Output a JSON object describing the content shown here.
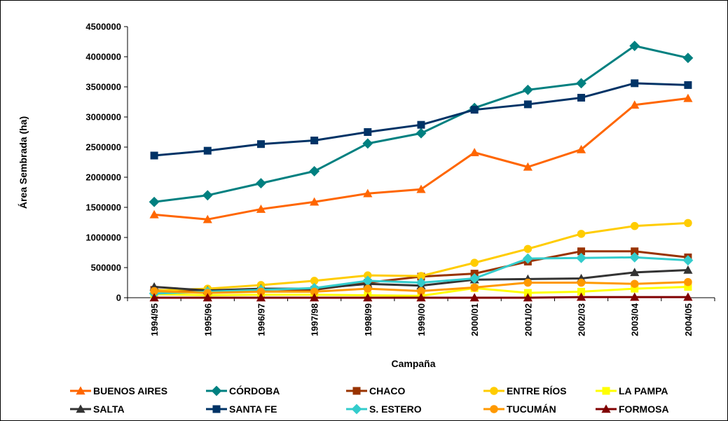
{
  "chart_data": {
    "type": "line",
    "title": "",
    "xlabel": "Campaña",
    "ylabel": "Área Sembrada (ha)",
    "ylim": [
      0,
      4500000
    ],
    "yticks": [
      "0",
      "500000",
      "1000000",
      "1500000",
      "2000000",
      "2500000",
      "3000000",
      "3500000",
      "4000000",
      "4500000"
    ],
    "grid": false,
    "legend_position": "bottom",
    "categories": [
      "1994/95",
      "1995/96",
      "1996/97",
      "1997/98",
      "1998/99",
      "1999/00",
      "2000/01",
      "2001/02",
      "2002/03",
      "2003/04",
      "2004/05"
    ],
    "series": [
      {
        "name": "BUENOS AIRES",
        "color": "#FF6600",
        "marker": "triangle",
        "values": [
          1380000,
          1300000,
          1470000,
          1590000,
          1730000,
          1800000,
          2410000,
          2170000,
          2460000,
          3200000,
          3310000
        ]
      },
      {
        "name": "CÓRDOBA",
        "color": "#008080",
        "marker": "diamond",
        "values": [
          1590000,
          1700000,
          1900000,
          2100000,
          2560000,
          2730000,
          3150000,
          3450000,
          3560000,
          4180000,
          3980000
        ]
      },
      {
        "name": "CHACO",
        "color": "#993300",
        "marker": "square",
        "values": [
          130000,
          100000,
          140000,
          130000,
          250000,
          350000,
          400000,
          600000,
          770000,
          770000,
          670000
        ]
      },
      {
        "name": "ENTRE RÍOS",
        "color": "#FFCC00",
        "marker": "circle",
        "values": [
          120000,
          150000,
          210000,
          280000,
          370000,
          360000,
          580000,
          810000,
          1060000,
          1190000,
          1240000
        ]
      },
      {
        "name": "LA PAMPA",
        "color": "#FFFF00",
        "marker": "square",
        "values": [
          60000,
          40000,
          50000,
          50000,
          40000,
          30000,
          160000,
          80000,
          100000,
          150000,
          180000
        ]
      },
      {
        "name": "SALTA",
        "color": "#333333",
        "marker": "triangle",
        "values": [
          180000,
          120000,
          150000,
          150000,
          230000,
          200000,
          300000,
          310000,
          320000,
          420000,
          460000
        ]
      },
      {
        "name": "SANTA FE",
        "color": "#003366",
        "marker": "square",
        "values": [
          2360000,
          2440000,
          2550000,
          2610000,
          2750000,
          2870000,
          3120000,
          3210000,
          3320000,
          3560000,
          3530000
        ]
      },
      {
        "name": "S. ESTERO",
        "color": "#33CCCC",
        "marker": "diamond",
        "values": [
          70000,
          100000,
          130000,
          160000,
          280000,
          250000,
          320000,
          650000,
          660000,
          670000,
          620000
        ]
      },
      {
        "name": "TUCUMÁN",
        "color": "#FF9900",
        "marker": "circle",
        "values": [
          110000,
          80000,
          100000,
          100000,
          150000,
          110000,
          170000,
          250000,
          250000,
          230000,
          260000
        ]
      },
      {
        "name": "FORMOSA",
        "color": "#800000",
        "marker": "triangle",
        "values": [
          0,
          0,
          0,
          0,
          0,
          0,
          0,
          0,
          10000,
          10000,
          10000
        ]
      }
    ]
  }
}
